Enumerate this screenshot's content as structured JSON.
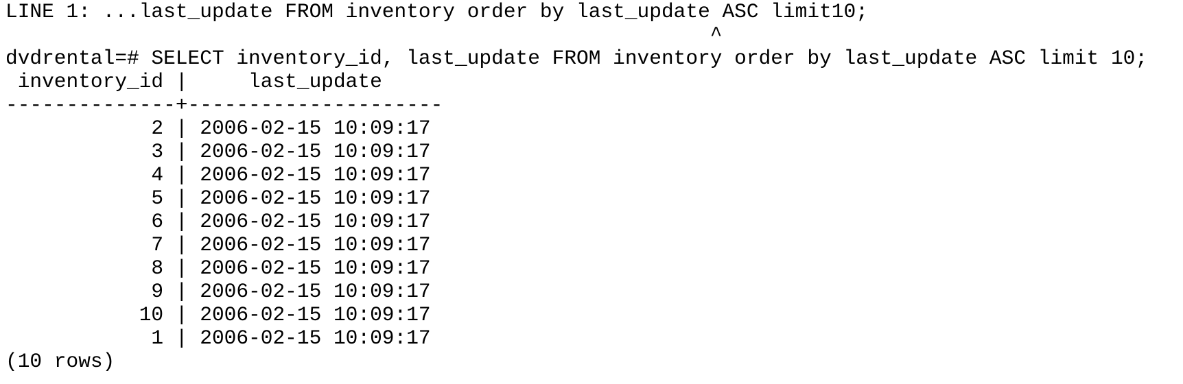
{
  "error_line": "LINE 1: ...last_update FROM inventory order by last_update ASC limit10;",
  "caret_line": "                                                          ^",
  "prompt": "dvdrental=# ",
  "command": "SELECT inventory_id, last_update FROM inventory order by last_update ASC limit 10;",
  "result": {
    "header": " inventory_id |     last_update",
    "separator": "--------------+---------------------",
    "rows": [
      "            2 | 2006-02-15 10:09:17",
      "            3 | 2006-02-15 10:09:17",
      "            4 | 2006-02-15 10:09:17",
      "            5 | 2006-02-15 10:09:17",
      "            6 | 2006-02-15 10:09:17",
      "            7 | 2006-02-15 10:09:17",
      "            8 | 2006-02-15 10:09:17",
      "            9 | 2006-02-15 10:09:17",
      "           10 | 2006-02-15 10:09:17",
      "            1 | 2006-02-15 10:09:17"
    ],
    "footer": "(10 rows)"
  }
}
